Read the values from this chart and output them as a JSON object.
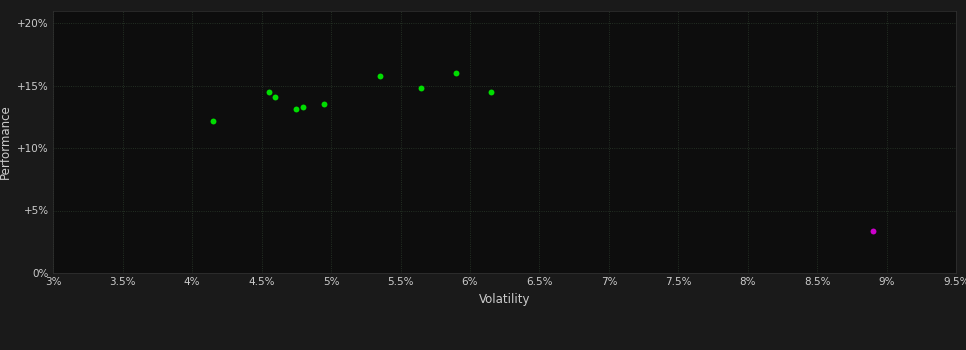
{
  "background_color": "#1a1a1a",
  "plot_bg_color": "#0d0d0d",
  "grid_color": "#2a3a2a",
  "text_color": "#cccccc",
  "xlabel": "Volatility",
  "ylabel": "Performance",
  "xlim": [
    0.03,
    0.095
  ],
  "ylim": [
    0.0,
    0.21
  ],
  "xticks": [
    0.03,
    0.035,
    0.04,
    0.045,
    0.05,
    0.055,
    0.06,
    0.065,
    0.07,
    0.075,
    0.08,
    0.085,
    0.09,
    0.095
  ],
  "xtick_labels": [
    "3%",
    "3.5%",
    "4%",
    "4.5%",
    "5%",
    "5.5%",
    "6%",
    "6.5%",
    "7%",
    "7.5%",
    "8%",
    "8.5%",
    "9%",
    "9.5%"
  ],
  "yticks": [
    0.0,
    0.05,
    0.1,
    0.15,
    0.2
  ],
  "ytick_labels": [
    "0%",
    "+5%",
    "+10%",
    "+15%",
    "+20%"
  ],
  "green_points": [
    [
      0.0415,
      0.122
    ],
    [
      0.0455,
      0.145
    ],
    [
      0.046,
      0.141
    ],
    [
      0.0475,
      0.131
    ],
    [
      0.048,
      0.133
    ],
    [
      0.0495,
      0.135
    ],
    [
      0.0535,
      0.158
    ],
    [
      0.0565,
      0.148
    ],
    [
      0.059,
      0.16
    ],
    [
      0.0615,
      0.145
    ]
  ],
  "magenta_points": [
    [
      0.089,
      0.034
    ]
  ],
  "green_color": "#00dd00",
  "magenta_color": "#cc00cc",
  "marker_size": 18
}
